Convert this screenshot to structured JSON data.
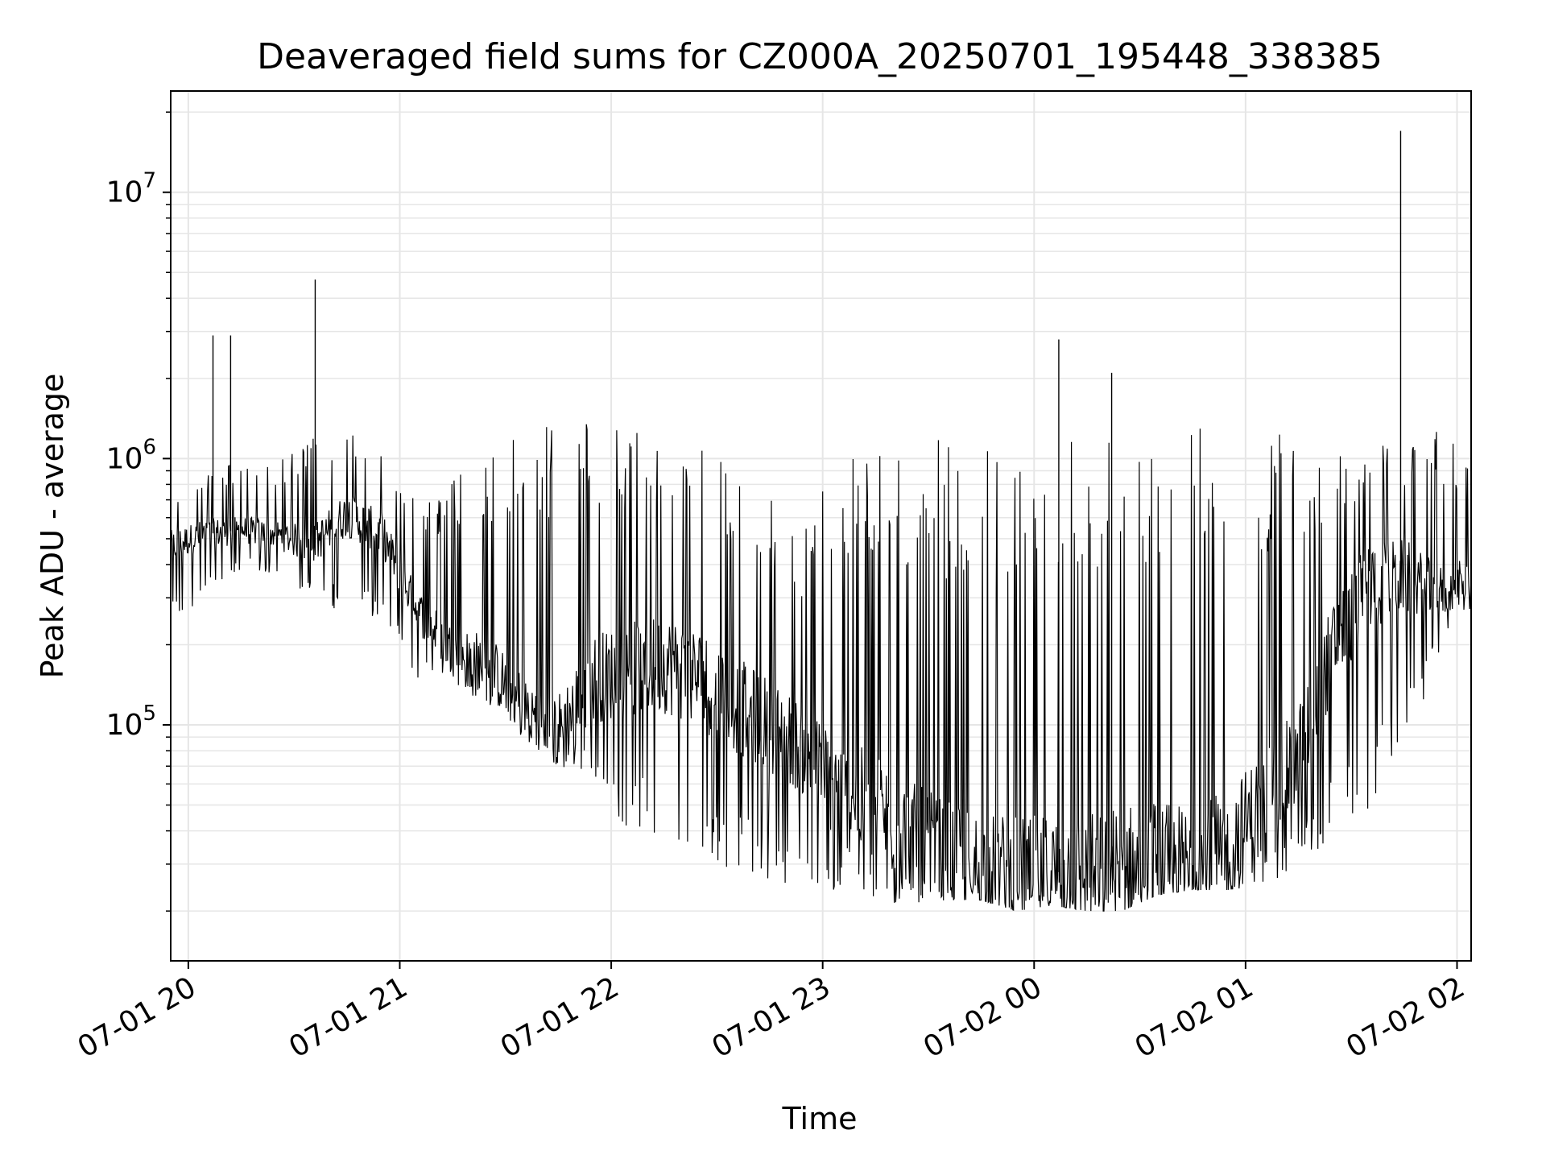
{
  "chart_data": {
    "type": "line",
    "title": "Deaveraged field sums for CZ000A_20250701_195448_338385",
    "xlabel": "Time",
    "ylabel": "Peak ADU - average",
    "yscale": "log",
    "ylim": [
      13000,
      24000000
    ],
    "xlim": [
      "2025-07-01T19:55:00",
      "2025-07-02T02:04:00"
    ],
    "grid": true,
    "line_color": "#000000",
    "grid_color": "#e6e6e6",
    "x_ticks": [
      {
        "value": "2025-07-01T20:00:00",
        "label": "07-01 20"
      },
      {
        "value": "2025-07-01T21:00:00",
        "label": "07-01 21"
      },
      {
        "value": "2025-07-01T22:00:00",
        "label": "07-01 22"
      },
      {
        "value": "2025-07-01T23:00:00",
        "label": "07-01 23"
      },
      {
        "value": "2025-07-02T00:00:00",
        "label": "07-02 00"
      },
      {
        "value": "2025-07-02T01:00:00",
        "label": "07-02 01"
      },
      {
        "value": "2025-07-02T02:00:00",
        "label": "07-02 02"
      }
    ],
    "y_ticks": [
      {
        "value": 100000,
        "base": "10",
        "exp": "5"
      },
      {
        "value": 1000000,
        "base": "10",
        "exp": "6"
      },
      {
        "value": 10000000,
        "base": "10",
        "exp": "7"
      }
    ],
    "series": [
      {
        "x": [
          "2025-07-01T19:55:00",
          "2025-07-01T20:05:00",
          "2025-07-01T20:15:00",
          "2025-07-01T20:25:00",
          "2025-07-01T20:35:00",
          "2025-07-01T20:45:00",
          "2025-07-01T20:55:00",
          "2025-07-01T21:05:00",
          "2025-07-01T21:15:00",
          "2025-07-01T21:25:00",
          "2025-07-01T21:35:00",
          "2025-07-01T21:45:00",
          "2025-07-01T21:55:00",
          "2025-07-01T22:05:00",
          "2025-07-01T22:15:00",
          "2025-07-01T22:25:00",
          "2025-07-01T22:35:00",
          "2025-07-01T22:45:00",
          "2025-07-01T22:55:00",
          "2025-07-01T23:05:00",
          "2025-07-01T23:15:00",
          "2025-07-01T23:25:00",
          "2025-07-01T23:35:00",
          "2025-07-01T23:45:00",
          "2025-07-01T23:55:00",
          "2025-07-02T00:05:00",
          "2025-07-02T00:15:00",
          "2025-07-02T00:25:00",
          "2025-07-02T00:35:00",
          "2025-07-02T00:45:00",
          "2025-07-02T00:55:00",
          "2025-07-02T01:05:00",
          "2025-07-02T01:15:00",
          "2025-07-02T01:25:00",
          "2025-07-02T01:35:00",
          "2025-07-02T01:45:00",
          "2025-07-02T01:55:00",
          "2025-07-02T02:04:00"
        ],
        "y": [
          470000,
          520000,
          540000,
          520000,
          470000,
          620000,
          520000,
          270000,
          190000,
          170000,
          115000,
          92000,
          150000,
          160000,
          170000,
          150000,
          120000,
          100000,
          80000,
          55000,
          48000,
          38000,
          32000,
          30000,
          28000,
          28000,
          28000,
          30000,
          32000,
          30000,
          35000,
          50000,
          75000,
          200000,
          330000,
          360000,
          310000,
          360000
        ],
        "low": [
          230000,
          300000,
          380000,
          370000,
          300000,
          260000,
          240000,
          150000,
          140000,
          120000,
          90000,
          70000,
          60000,
          40000,
          35000,
          30000,
          28000,
          25000,
          23000,
          22000,
          21000,
          21000,
          22000,
          22000,
          20000,
          21000,
          20000,
          20000,
          23000,
          24000,
          24000,
          25000,
          28000,
          35000,
          45000,
          80000,
          180000,
          260000
        ],
        "high": [
          700000,
          900000,
          1000000,
          1000000,
          1200000,
          1300000,
          1100000,
          700000,
          850000,
          1000000,
          1300000,
          1500000,
          1400000,
          1300000,
          1200000,
          1100000,
          900000,
          700000,
          600000,
          1100000,
          1200000,
          1100000,
          1200000,
          1100000,
          1000000,
          1300000,
          1300000,
          1400000,
          1400000,
          1400000,
          1400000,
          1300000,
          1200000,
          1100000,
          1100000,
          1200000,
          1300000,
          1000000
        ],
        "spikes": [
          {
            "x": "2025-07-01T20:07:00",
            "y": 2900000
          },
          {
            "x": "2025-07-01T20:12:00",
            "y": 2900000
          },
          {
            "x": "2025-07-01T20:36:00",
            "y": 4700000
          },
          {
            "x": "2025-07-02T00:07:00",
            "y": 2800000
          },
          {
            "x": "2025-07-02T00:22:00",
            "y": 2100000
          },
          {
            "x": "2025-07-02T01:44:00",
            "y": 17000000
          }
        ]
      }
    ]
  }
}
